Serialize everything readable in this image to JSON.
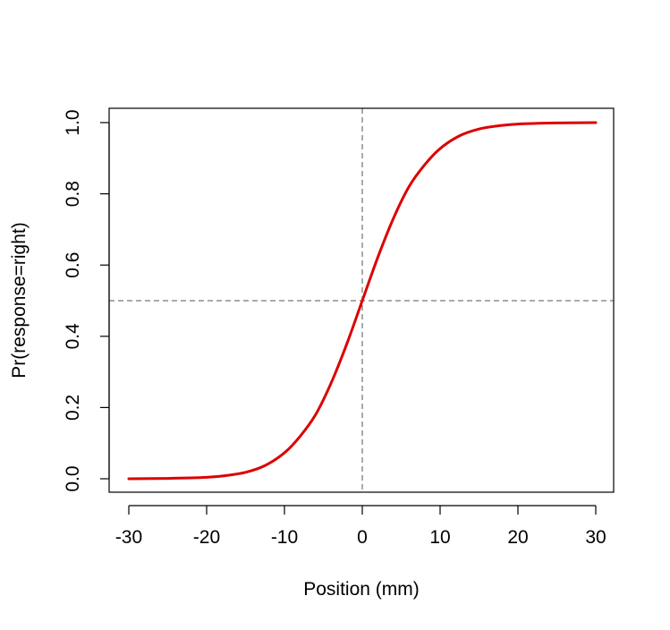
{
  "chart_data": {
    "type": "line",
    "title": "",
    "xlabel": "Position (mm)",
    "ylabel": "Pr(response=right)",
    "xlim": [
      -30,
      30
    ],
    "ylim": [
      0,
      1
    ],
    "x_ticks": [
      -30,
      -20,
      -10,
      0,
      10,
      20,
      30
    ],
    "y_ticks": [
      0.0,
      0.2,
      0.4,
      0.6,
      0.8,
      1.0
    ],
    "x_tick_labels": [
      "-30",
      "-20",
      "-10",
      "0",
      "10",
      "20",
      "30"
    ],
    "y_tick_labels": [
      "0.0",
      "0.2",
      "0.4",
      "0.6",
      "0.8",
      "1.0"
    ],
    "grid": false,
    "series": [
      {
        "color": "#dd0000",
        "x": [
          -30,
          -25,
          -20,
          -17.5,
          -15,
          -12.5,
          -10,
          -8,
          -6,
          -4,
          -2,
          0,
          2,
          4,
          6,
          8,
          10,
          12.5,
          15,
          17.5,
          20,
          25,
          30
        ],
        "y": [
          0.0,
          0.001,
          0.004,
          0.009,
          0.018,
          0.037,
          0.073,
          0.119,
          0.18,
          0.269,
          0.378,
          0.5,
          0.622,
          0.731,
          0.82,
          0.881,
          0.927,
          0.963,
          0.982,
          0.991,
          0.996,
          0.999,
          1.0
        ]
      }
    ],
    "reference_lines": [
      {
        "orientation": "vertical",
        "value": 0,
        "style": "dashed",
        "color": "#555555"
      },
      {
        "orientation": "horizontal",
        "value": 0.5,
        "style": "dashed",
        "color": "#555555"
      }
    ]
  }
}
